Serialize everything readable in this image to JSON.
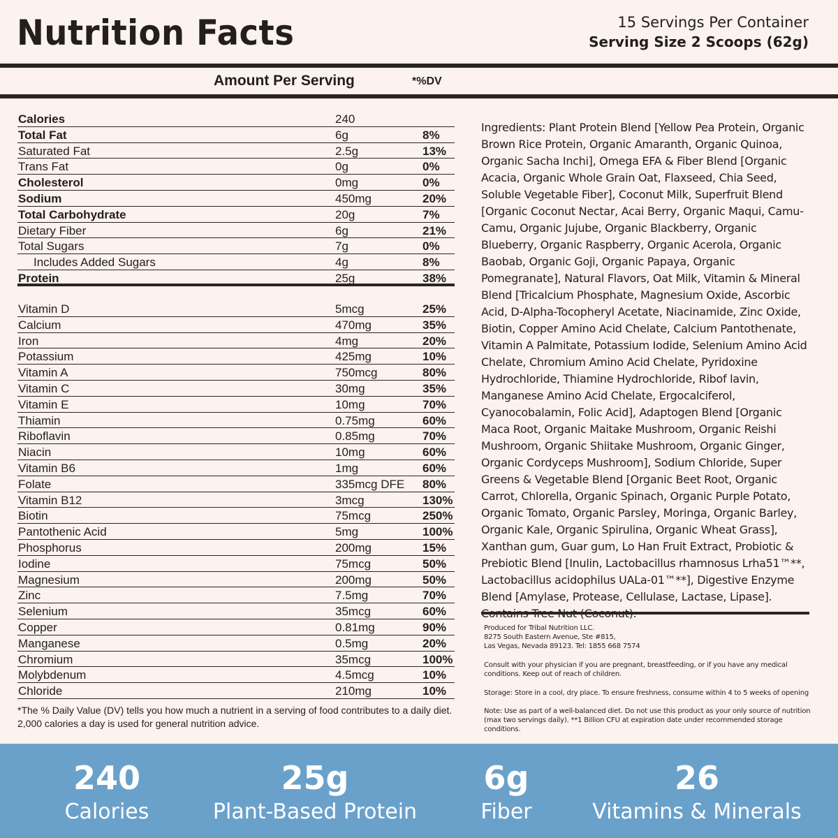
{
  "header": {
    "title": "Nutrition Facts",
    "servings": "15 Servings Per Container",
    "serving_size": "Serving Size 2 Scoops (62g)"
  },
  "columns": {
    "amount": "Amount Per Serving",
    "dv": "*%DV"
  },
  "macros": [
    {
      "name": "Calories",
      "amount": "240",
      "dv": "",
      "bold": true
    },
    {
      "name": "Total Fat",
      "amount": "6g",
      "dv": "8%",
      "bold": true
    },
    {
      "name": "Saturated Fat",
      "amount": "2.5g",
      "dv": "13%"
    },
    {
      "name": "Trans Fat",
      "amount": "0g",
      "dv": "0%"
    },
    {
      "name": "Cholesterol",
      "amount": "0mg",
      "dv": "0%",
      "bold": true
    },
    {
      "name": "Sodium",
      "amount": "450mg",
      "dv": "20%",
      "bold": true
    },
    {
      "name": "Total Carbohydrate",
      "amount": "20g",
      "dv": "7%",
      "bold": true
    },
    {
      "name": "Dietary Fiber",
      "amount": "6g",
      "dv": "21%"
    },
    {
      "name": "Total Sugars",
      "amount": "7g",
      "dv": "0%"
    },
    {
      "name": "Includes Added Sugars",
      "amount": "4g",
      "dv": "8%",
      "indent": true
    },
    {
      "name": "Protein",
      "amount": "25g",
      "dv": "38%",
      "bold": true
    }
  ],
  "micros": [
    {
      "name": "Vitamin D",
      "amount": "5mcg",
      "dv": "25%"
    },
    {
      "name": "Calcium",
      "amount": "470mg",
      "dv": "35%"
    },
    {
      "name": "Iron",
      "amount": "4mg",
      "dv": "20%"
    },
    {
      "name": "Potassium",
      "amount": "425mg",
      "dv": "10%"
    },
    {
      "name": "Vitamin A",
      "amount": "750mcg",
      "dv": "80%"
    },
    {
      "name": "Vitamin C",
      "amount": "30mg",
      "dv": "35%"
    },
    {
      "name": "Vitamin E",
      "amount": "10mg",
      "dv": "70%"
    },
    {
      "name": "Thiamin",
      "amount": "0.75mg",
      "dv": "60%"
    },
    {
      "name": "Riboflavin",
      "amount": "0.85mg",
      "dv": "70%"
    },
    {
      "name": "Niacin",
      "amount": "10mg",
      "dv": "60%"
    },
    {
      "name": "Vitamin B6",
      "amount": "1mg",
      "dv": "60%"
    },
    {
      "name": "Folate",
      "amount": "335mcg DFE",
      "dv": "80%"
    },
    {
      "name": "Vitamin B12",
      "amount": "3mcg",
      "dv": "130%"
    },
    {
      "name": "Biotin",
      "amount": "75mcg",
      "dv": "250%"
    },
    {
      "name": "Pantothenic Acid",
      "amount": "5mg",
      "dv": "100%"
    },
    {
      "name": "Phosphorus",
      "amount": "200mg",
      "dv": "15%"
    },
    {
      "name": "Iodine",
      "amount": "75mcg",
      "dv": "50%"
    },
    {
      "name": "Magnesium",
      "amount": "200mg",
      "dv": "50%"
    },
    {
      "name": "Zinc",
      "amount": "7.5mg",
      "dv": "70%"
    },
    {
      "name": "Selenium",
      "amount": "35mcg",
      "dv": "60%"
    },
    {
      "name": "Copper",
      "amount": "0.81mg",
      "dv": "90%"
    },
    {
      "name": "Manganese",
      "amount": "0.5mg",
      "dv": "20%"
    },
    {
      "name": "Chromium",
      "amount": "35mcg",
      "dv": "100%"
    },
    {
      "name": "Molybdenum",
      "amount": "4.5mcg",
      "dv": "10%"
    },
    {
      "name": "Chloride",
      "amount": "210mg",
      "dv": "10%"
    }
  ],
  "dv_note": "*The % Daily Value (DV) tells you how much a nutrient in a serving of food contributes to a daily diet. 2,000 calories a day is used for general nutrition advice.",
  "ingredients": "Ingredients: Plant Protein Blend [Yellow Pea Protein, Organic Brown Rice Protein, Organic Amaranth, Organic Quinoa, Organic Sacha Inchi], Omega EFA & Fiber Blend [Organic Acacia, Organic Whole Grain Oat, Flaxseed, Chia Seed, Soluble Vegetable Fiber], Coconut Milk, Superfruit Blend [Organic Coconut Nectar, Acai Berry, Organic Maqui, Camu-Camu, Organic Jujube, Organic Blackberry, Organic Blueberry, Organic Raspberry, Organic Acerola, Organic Baobab, Organic Goji, Organic Papaya, Organic Pomegranate], Natural Flavors, Oat Milk, Vitamin & Mineral Blend [Tricalcium Phosphate, Magnesium Oxide, Ascorbic Acid, D-Alpha-Tocopheryl Acetate, Niacinamide, Zinc Oxide, Biotin, Copper Amino Acid Chelate, Calcium Pantothenate, Vitamin A Palmitate, Potassium Iodide, Selenium Amino Acid Chelate, Chromium Amino Acid Chelate, Pyridoxine Hydrochloride, Thiamine Hydrochloride, Ribof lavin, Manganese Amino Acid Chelate, Ergocalciferol, Cyanocobalamin, Folic Acid], Adaptogen Blend [Organic Maca Root, Organic Maitake Mushroom, Organic Reishi Mushroom, Organic Shiitake Mushroom, Organic Ginger, Organic Cordyceps Mushroom], Sodium Chloride, Super Greens & Vegetable Blend [Organic Beet Root, Organic Carrot, Chlorella, Organic Spinach, Organic Purple Potato, Organic Tomato, Organic Parsley, Moringa, Organic Barley, Organic Kale, Organic Spirulina, Organic Wheat Grass], Xanthan gum, Guar gum, Lo Han Fruit Extract, Probiotic & Prebiotic Blend [Inulin, Lactobacillus rhamnosus Lrha51™**, Lactobacillus acidophilus UALa-01™**], Digestive Enzyme Blend [Amylase, Protease, Cellulase, Lactase, Lipase]. Contains Tree Nut (Coconut).",
  "fine_print": {
    "producer": [
      "Produced for Tribal Nutrition LLC.",
      "8275 South Eastern Avenue, Ste #815,",
      "Las Vegas, Nevada 89123. Tel: 1855 668 7574"
    ],
    "warning": "Consult with your physician if you are pregnant, breastfeeding, or if you have any medical conditions. Keep out of reach of children.",
    "storage": "Storage: Store in a cool, dry place. To ensure freshness, consume within 4 to 5 weeks of opening",
    "note": "Note: Use as part of a well-balanced diet. Do not use this product as your only source of nutrition (max two servings daily). **1 Billion CFU at expiration date under recommended storage conditions."
  },
  "footer": {
    "color": "#6aa1cb",
    "stats": [
      {
        "value": "240",
        "label": "Calories"
      },
      {
        "value": "25g",
        "label": "Plant-Based Protein"
      },
      {
        "value": "6g",
        "label": "Fiber"
      },
      {
        "value": "26",
        "label": "Vitamins & Minerals"
      }
    ]
  }
}
